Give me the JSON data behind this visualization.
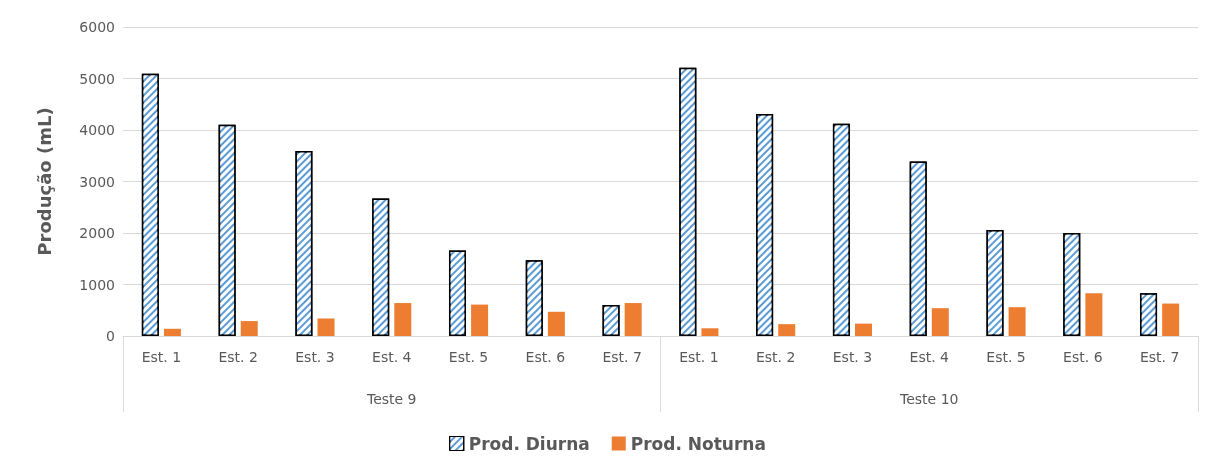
{
  "chart_data": {
    "type": "bar",
    "ylabel": "Produção (mL)",
    "categories": [
      "Est. 1",
      "Est. 2",
      "Est. 3",
      "Est. 4",
      "Est. 5",
      "Est. 6",
      "Est. 7",
      "Est. 1",
      "Est. 2",
      "Est. 3",
      "Est. 4",
      "Est. 5",
      "Est. 6",
      "Est. 7"
    ],
    "annotations": [
      "Teste 9",
      "Teste 10"
    ],
    "series": [
      {
        "name": "Prod. Diurna",
        "color": "#5b9bd5",
        "values": [
          5090,
          4100,
          3590,
          2670,
          1660,
          1470,
          600,
          5210,
          4310,
          4120,
          3390,
          2060,
          2000,
          830
        ]
      },
      {
        "name": "Prod. Noturna",
        "color": "#ed7d31",
        "values": [
          140,
          290,
          340,
          640,
          610,
          470,
          640,
          150,
          230,
          240,
          540,
          560,
          830,
          630
        ]
      }
    ],
    "ylim": [
      0,
      6000
    ],
    "yticks": [
      0,
      1000,
      2000,
      3000,
      4000,
      5000,
      6000
    ],
    "grid": "y",
    "legend": "bottom"
  }
}
